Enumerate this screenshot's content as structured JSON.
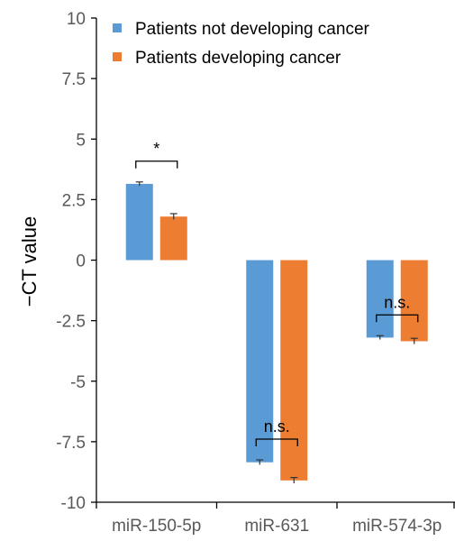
{
  "chart_data": {
    "type": "bar",
    "ylabel": "−CT value",
    "ylim": [
      -10,
      10
    ],
    "yticks": [
      10,
      7.5,
      5,
      2.5,
      0,
      -2.5,
      -5,
      -7.5,
      -10
    ],
    "ytick_labels": [
      "10",
      "7.5",
      "5",
      "2.5",
      "0",
      "-2.5",
      "-5",
      "-7.5",
      "-10"
    ],
    "categories": [
      "miR-150-5p",
      "miR-631",
      "miR-574-3p"
    ],
    "series": [
      {
        "name": "Patients not developing cancer",
        "color": "#5B9BD5",
        "values": [
          3.15,
          -8.35,
          -3.2
        ],
        "errors": [
          0.08,
          0.1,
          0.08
        ]
      },
      {
        "name": "Patients developing cancer",
        "color": "#ED7D31",
        "values": [
          1.8,
          -9.1,
          -3.35
        ],
        "errors": [
          0.12,
          0.12,
          0.12
        ]
      }
    ],
    "annotations": [
      "*",
      "n.s.",
      "n.s."
    ],
    "legend_position": "top-right",
    "grid": false
  }
}
